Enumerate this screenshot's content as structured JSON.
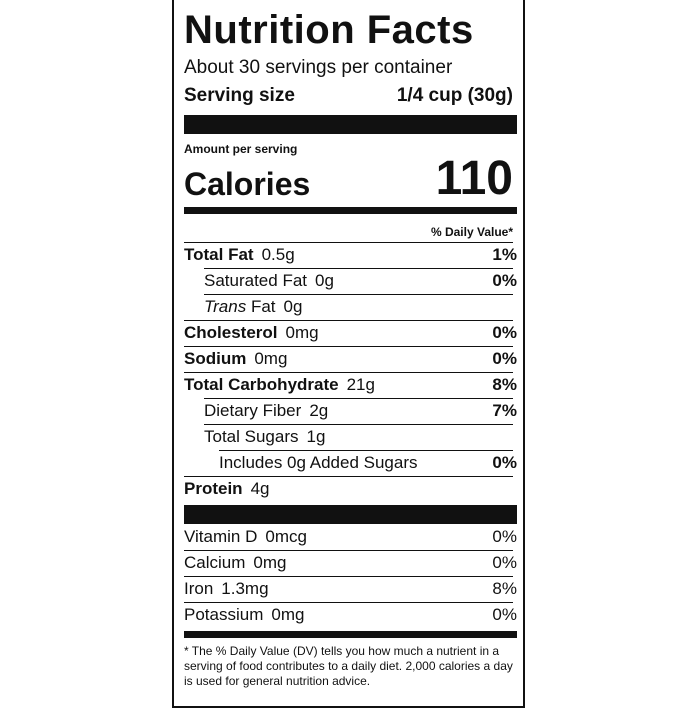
{
  "title": "Nutrition Facts",
  "servings": "About 30 servings per container",
  "serving_size": {
    "label": "Serving size",
    "value": "1/4 cup (30g)"
  },
  "amount_per_serving": "Amount per serving",
  "calories": {
    "label": "Calories",
    "value": "110"
  },
  "daily_value_header": "% Daily Value*",
  "nutrients": [
    {
      "name": "Total Fat",
      "amount": "0.5g",
      "dv": "1%"
    },
    {
      "name": "Saturated Fat",
      "amount": "0g",
      "dv": "0%"
    },
    {
      "prefix": "Trans",
      "name": "Fat",
      "amount": "0g"
    },
    {
      "name": "Cholesterol",
      "amount": "0mg",
      "dv": "0%"
    },
    {
      "name": "Sodium",
      "amount": "0mg",
      "dv": "0%"
    },
    {
      "name": "Total Carbohydrate",
      "amount": "21g",
      "dv": "8%"
    },
    {
      "name": "Dietary Fiber",
      "amount": "2g",
      "dv": "7%"
    },
    {
      "name": "Total Sugars",
      "amount": "1g"
    },
    {
      "name": "Includes 0g Added Sugars",
      "dv": "0%"
    },
    {
      "name": "Protein",
      "amount": "4g"
    }
  ],
  "vitamins": [
    {
      "name": "Vitamin D",
      "amount": "0mcg",
      "dv": "0%"
    },
    {
      "name": "Calcium",
      "amount": "0mg",
      "dv": "0%"
    },
    {
      "name": "Iron",
      "amount": "1.3mg",
      "dv": "8%"
    },
    {
      "name": "Potassium",
      "amount": "0mg",
      "dv": "0%"
    }
  ],
  "footnote": "* The % Daily Value (DV) tells you how much a nutrient in a serving of food contributes to a daily diet. 2,000 calories a day is used for general nutrition advice."
}
